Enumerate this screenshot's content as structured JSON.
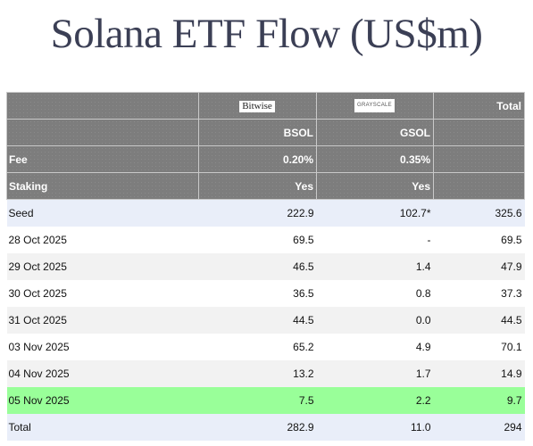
{
  "title": "Solana ETF Flow (US$m)",
  "header": {
    "issuers": [
      "Bitwise",
      "GRAYSCALE"
    ],
    "total_label": "Total",
    "tickers": [
      "BSOL",
      "GSOL"
    ],
    "fee_label": "Fee",
    "fees": [
      "0.20%",
      "0.35%"
    ],
    "staking_label": "Staking",
    "staking": [
      "Yes",
      "Yes"
    ]
  },
  "rows": [
    {
      "label": "Seed",
      "bsol": "222.9",
      "gsol": "102.7*",
      "total": "325.6"
    },
    {
      "label": "28 Oct 2025",
      "bsol": "69.5",
      "gsol": "-",
      "total": "69.5"
    },
    {
      "label": "29 Oct 2025",
      "bsol": "46.5",
      "gsol": "1.4",
      "total": "47.9"
    },
    {
      "label": "30 Oct 2025",
      "bsol": "36.5",
      "gsol": "0.8",
      "total": "37.3"
    },
    {
      "label": "31 Oct 2025",
      "bsol": "44.5",
      "gsol": "0.0",
      "total": "44.5"
    },
    {
      "label": "03 Nov 2025",
      "bsol": "65.2",
      "gsol": "4.9",
      "total": "70.1"
    },
    {
      "label": "04 Nov 2025",
      "bsol": "13.2",
      "gsol": "1.7",
      "total": "14.9"
    },
    {
      "label": "05 Nov 2025",
      "bsol": "7.5",
      "gsol": "2.2",
      "total": "9.7"
    }
  ],
  "total_row": {
    "label": "Total",
    "bsol": "282.9",
    "gsol": "11.0",
    "total": "294"
  },
  "colors": {
    "header_bg": "#7d7d7d",
    "seed_bg": "#e9eef9",
    "highlight_bg": "#99ff99",
    "title": "#3b3f55"
  }
}
